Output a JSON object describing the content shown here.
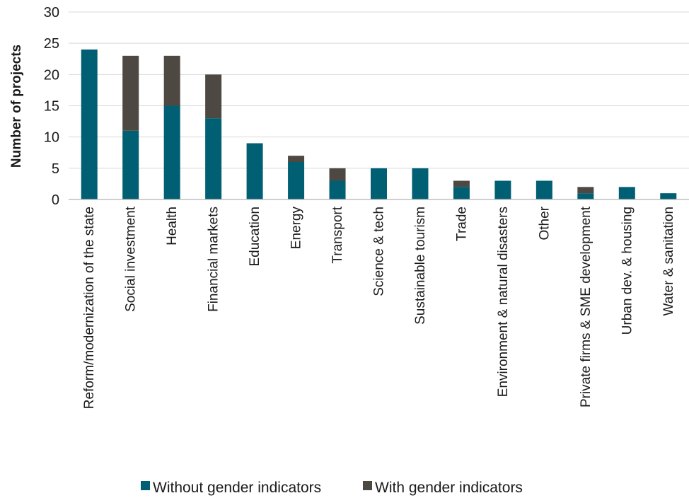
{
  "chart_data": {
    "type": "bar",
    "stacked": true,
    "title": "",
    "xlabel": "",
    "ylabel": "Number of projects",
    "ylim": [
      0,
      30
    ],
    "yticks": [
      0,
      5,
      10,
      15,
      20,
      25,
      30
    ],
    "grid": true,
    "legend_position": "bottom",
    "categories": [
      "Reform/modernization of the state",
      "Social investment",
      "Health",
      "Financial markets",
      "Education",
      "Energy",
      "Transport",
      "Science & tech",
      "Sustainable tourism",
      "Trade",
      "Environment & natural disasters",
      "Other",
      "Private firms & SME development",
      "Urban dev. & housing",
      "Water & sanitation"
    ],
    "series": [
      {
        "name": "Without gender indicators",
        "color": "#005f73",
        "values": [
          24,
          11,
          15,
          13,
          9,
          6,
          3,
          5,
          5,
          2,
          3,
          3,
          1,
          2,
          1
        ]
      },
      {
        "name": "With gender indicators",
        "color": "#4e4843",
        "values": [
          0,
          12,
          8,
          7,
          0,
          1,
          2,
          0,
          0,
          1,
          0,
          0,
          1,
          0,
          0
        ]
      }
    ]
  }
}
